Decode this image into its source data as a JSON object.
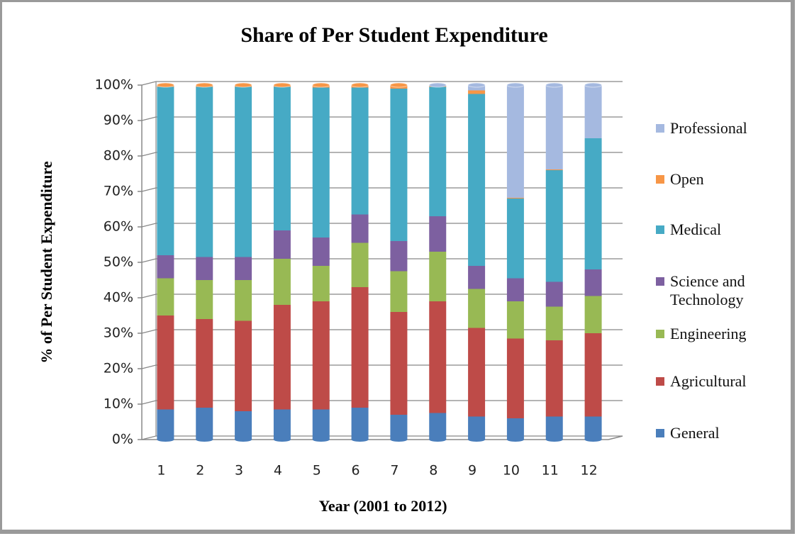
{
  "chart_data": {
    "type": "bar",
    "stacked": true,
    "title": "Share of Per Student Expenditure",
    "x_label": "Year (2001 to 2012)",
    "y_label": "% of Per Student Expenditure",
    "categories": [
      "1",
      "2",
      "3",
      "4",
      "5",
      "6",
      "7",
      "8",
      "9",
      "10",
      "11",
      "12"
    ],
    "series": [
      {
        "name": "General",
        "color": "#4a7ebb",
        "values": [
          8.5,
          9,
          8,
          8.5,
          8.5,
          9,
          7,
          7.5,
          6.5,
          6,
          6.5,
          6.5
        ]
      },
      {
        "name": "Agricultural",
        "color": "#be4b48",
        "values": [
          26.5,
          25,
          25.5,
          29.5,
          30.5,
          34,
          29,
          31.5,
          25,
          22.5,
          21.5,
          23.5
        ]
      },
      {
        "name": "Engineering",
        "color": "#98b954",
        "values": [
          10.5,
          11,
          11.5,
          13,
          10,
          12.5,
          11.5,
          14,
          11,
          10.5,
          9.5,
          10.5
        ]
      },
      {
        "name": "Science and Technology",
        "color": "#7d60a0",
        "values": [
          6.5,
          6.5,
          6.5,
          8,
          8,
          8,
          8.5,
          10,
          6.5,
          6.5,
          7,
          7.5
        ]
      },
      {
        "name": "Medical",
        "color": "#46aac5",
        "values": [
          47.5,
          48,
          48,
          40.5,
          42.3,
          35.8,
          43,
          36.5,
          48.5,
          22.5,
          31.5,
          37
        ]
      },
      {
        "name": "Open",
        "color": "#f79646",
        "values": [
          0.5,
          0.5,
          0.5,
          0.5,
          0.7,
          0.7,
          1,
          0.2,
          1,
          0.2,
          0.2,
          0
        ]
      },
      {
        "name": "Professional",
        "color": "#a5b9e0",
        "values": [
          0,
          0,
          0,
          0,
          0,
          0,
          0,
          0.3,
          1.5,
          31.8,
          23.8,
          15
        ]
      }
    ],
    "ylim": [
      0,
      100
    ],
    "yticks": [
      {
        "value": 0,
        "label": "0%"
      },
      {
        "value": 10,
        "label": "10%"
      },
      {
        "value": 20,
        "label": "20%"
      },
      {
        "value": 30,
        "label": "30%"
      },
      {
        "value": 40,
        "label": "40%"
      },
      {
        "value": 50,
        "label": "50%"
      },
      {
        "value": 60,
        "label": "60%"
      },
      {
        "value": 70,
        "label": "70%"
      },
      {
        "value": 80,
        "label": "80%"
      },
      {
        "value": 90,
        "label": "90%"
      },
      {
        "value": 100,
        "label": "100%"
      }
    ],
    "grid": true
  }
}
